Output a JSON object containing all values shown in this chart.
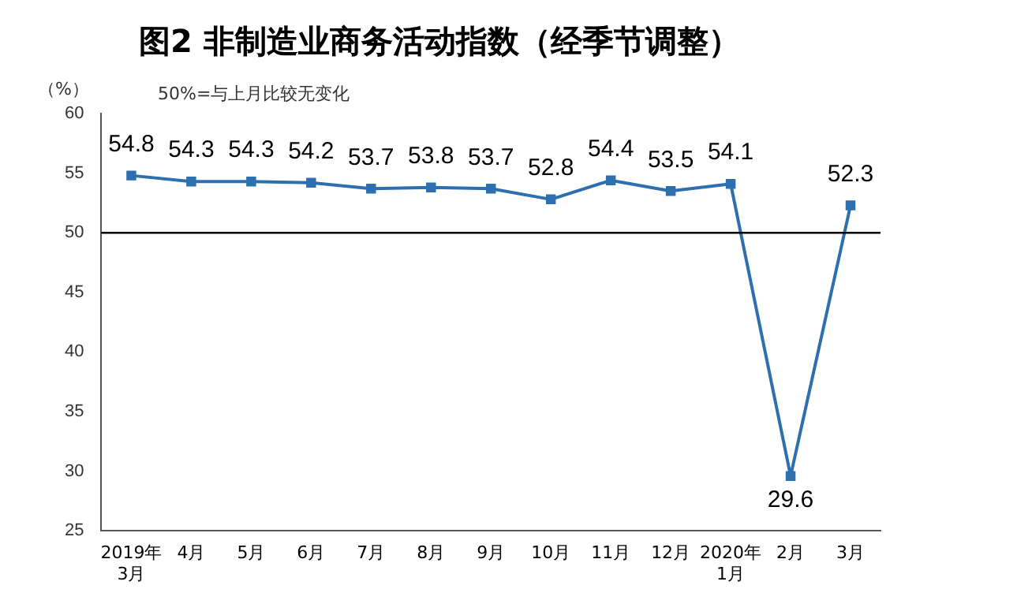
{
  "chart_data": {
    "type": "line",
    "title": "图2 非制造业商务活动指数（经季节调整）",
    "ylabel": "（%）",
    "annotations": [
      "50%=与上月比较无变化"
    ],
    "categories": [
      "2019年\n3月",
      "4月",
      "5月",
      "6月",
      "7月",
      "8月",
      "9月",
      "10月",
      "11月",
      "12月",
      "2020年\n1月",
      "2月",
      "3月"
    ],
    "series": [
      {
        "color": "#2e6fb0",
        "values": [
          54.8,
          54.3,
          54.3,
          54.2,
          53.7,
          53.8,
          53.7,
          52.8,
          54.4,
          53.5,
          54.1,
          29.6,
          52.3
        ]
      }
    ],
    "ylim": [
      25,
      60
    ],
    "yticks": [
      25,
      30,
      35,
      40,
      45,
      50,
      55,
      60
    ],
    "ref_lines": [
      {
        "axis": "y",
        "value": 50,
        "color": "#000000"
      }
    ],
    "data_labels": true,
    "marker": "square",
    "line_style": "solid",
    "grid": false,
    "legend": false
  }
}
